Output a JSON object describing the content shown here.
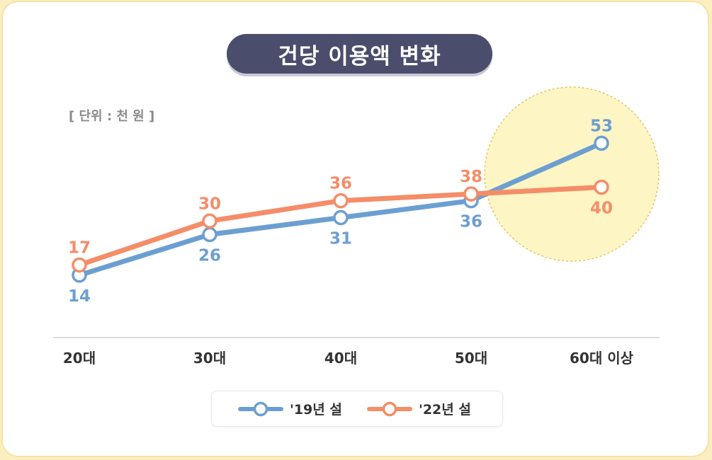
{
  "title": "건당 이용액 변화",
  "unit_label": "[ 단위 : 천 원 ]",
  "colors": {
    "series_2019": "#6c9fd1",
    "series_2022": "#f48d68",
    "highlight_fill": "#fdf5c4",
    "highlight_stroke": "#e6c46a",
    "title_bg": "#4a4d6b",
    "axis": "#dcdcdc",
    "tick_text": "#333333"
  },
  "chart_data": {
    "type": "line",
    "title": "건당 이용액 변화",
    "unit": "[ 단위 : 천 원 ]",
    "categories": [
      "20대",
      "30대",
      "40대",
      "50대",
      "60대 이상"
    ],
    "series": [
      {
        "name": "'19년 설",
        "values": [
          14,
          26,
          31,
          36,
          53
        ]
      },
      {
        "name": "'22년 설",
        "values": [
          17,
          30,
          36,
          38,
          40
        ]
      }
    ],
    "legend_position": "bottom",
    "grid": false,
    "highlight_category": "60대 이상"
  }
}
